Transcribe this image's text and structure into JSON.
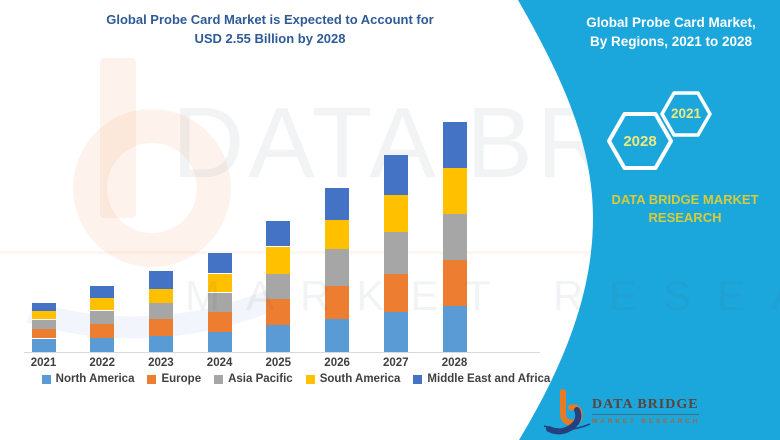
{
  "chart": {
    "title_line1": "Global Probe Card Market is Expected to Account for",
    "title_line2": "USD 2.55 Billion by 2028"
  },
  "chart_data": {
    "type": "bar",
    "stacked": true,
    "title": "Global Probe Card Market is Expected to Account for USD 2.55 Billion by 2028",
    "unit": "USD Billion",
    "categories": [
      "2021",
      "2022",
      "2023",
      "2024",
      "2025",
      "2026",
      "2027",
      "2028"
    ],
    "series": [
      {
        "name": "North America",
        "color": "#5B9BD5",
        "values": [
          0.15,
          0.16,
          0.18,
          0.22,
          0.3,
          0.37,
          0.44,
          0.51
        ]
      },
      {
        "name": "Europe",
        "color": "#ED7D31",
        "values": [
          0.11,
          0.15,
          0.19,
          0.22,
          0.29,
          0.36,
          0.43,
          0.51
        ]
      },
      {
        "name": "Asia Pacific",
        "color": "#A6A6A6",
        "values": [
          0.1,
          0.15,
          0.17,
          0.22,
          0.28,
          0.41,
          0.46,
          0.51
        ]
      },
      {
        "name": "South America",
        "color": "#FFC000",
        "values": [
          0.09,
          0.14,
          0.16,
          0.21,
          0.3,
          0.32,
          0.41,
          0.51
        ]
      },
      {
        "name": "Middle East and Africa",
        "color": "#4472C4",
        "values": [
          0.09,
          0.13,
          0.2,
          0.23,
          0.28,
          0.36,
          0.44,
          0.51
        ]
      }
    ],
    "totals": [
      0.54,
      0.73,
      0.9,
      1.1,
      1.45,
      1.82,
      2.18,
      2.55
    ],
    "value_axis": {
      "visible": false,
      "min": 0,
      "max": 2.6
    },
    "legend_position": "bottom",
    "grid": false
  },
  "right_panel": {
    "title_line1": "Global Probe Card Market,",
    "title_line2": "By Regions, 2021 to 2028",
    "hex_small_year": "2021",
    "hex_large_year": "2028",
    "brand_line1": "DATA BRIDGE MARKET",
    "brand_line2": "RESEARCH",
    "logo_title": "DATA BRIDGE",
    "logo_subtitle": "MARKET RESEARCH",
    "colors": {
      "panel": "#1CA7DC",
      "year_text": "#EDE87E",
      "brand_text": "#D6CC3A",
      "title_text": "#FFFFFF"
    }
  },
  "watermark": {
    "line1": "DATA BRIDGE",
    "line2": "MARKET RESEARCH"
  }
}
